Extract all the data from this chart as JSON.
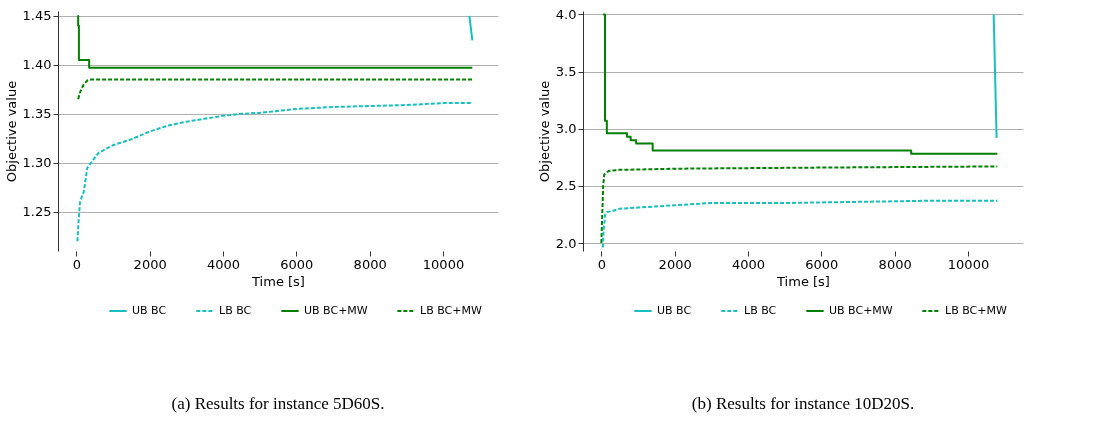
{
  "chart_data": [
    {
      "type": "line",
      "xlabel": "Time [s]",
      "ylabel": "Objective value",
      "annotations": [
        "(a) Results for instance 5D60S."
      ],
      "xlim": [
        -500,
        11500
      ],
      "ylim": [
        1.21,
        1.455
      ],
      "xticks": [
        0,
        2000,
        4000,
        6000,
        8000,
        10000
      ],
      "yticks": [
        1.25,
        {
          "value": 1.3,
          "label": "1.30"
        },
        1.35,
        {
          "value": 1.4,
          "label": "1.40"
        },
        1.45
      ],
      "grid": "y",
      "legend": "bottom",
      "series": [
        {
          "name": "UB BC",
          "color": "#17bfbf",
          "line_style": "solid",
          "x": [
            10720,
            10800
          ],
          "values": [
            1.45,
            1.425
          ]
        },
        {
          "name": "LB BC",
          "color": "#17bfbf",
          "line_style": "dashed",
          "x": [
            30,
            60,
            100,
            200,
            300,
            400,
            600,
            1000,
            1500,
            2000,
            2500,
            3000,
            3500,
            4000,
            4500,
            5000,
            5500,
            6000,
            7000,
            8000,
            9000,
            9500,
            10000,
            10800
          ],
          "values": [
            1.22,
            1.24,
            1.26,
            1.27,
            1.295,
            1.3,
            1.31,
            1.318,
            1.324,
            1.332,
            1.338,
            1.342,
            1.345,
            1.348,
            1.35,
            1.351,
            1.353,
            1.355,
            1.357,
            1.358,
            1.359,
            1.36,
            1.361,
            1.361
          ]
        },
        {
          "name": "UB BC+MW",
          "type": "step",
          "color": "#008000",
          "line_style": "solid",
          "x": [
            30,
            50,
            70,
            350,
            10800
          ],
          "values": [
            1.45,
            1.44,
            1.405,
            1.397,
            1.397
          ]
        },
        {
          "name": "LB BC+MW",
          "color": "#008000",
          "line_style": "dashed",
          "x": [
            50,
            100,
            200,
            300,
            400,
            10800
          ],
          "values": [
            1.365,
            1.372,
            1.38,
            1.384,
            1.385,
            1.385
          ]
        }
      ]
    },
    {
      "type": "line",
      "xlabel": "Time [s]",
      "ylabel": "Objective value",
      "annotations": [
        "(b) Results for instance 10D20S."
      ],
      "xlim": [
        -500,
        11500
      ],
      "ylim": [
        1.93,
        4.03
      ],
      "xticks": [
        0,
        2000,
        4000,
        6000,
        8000,
        10000
      ],
      "yticks": [
        {
          "value": 2,
          "label": "2.0"
        },
        2.5,
        {
          "value": 3,
          "label": "3.0"
        },
        3.5,
        {
          "value": 4,
          "label": "4.0"
        }
      ],
      "grid": "y",
      "legend": "bottom",
      "series": [
        {
          "name": "UB BC",
          "color": "#17bfbf",
          "line_style": "solid",
          "x": [
            10700,
            10780
          ],
          "values": [
            4.0,
            2.92
          ]
        },
        {
          "name": "LB BC",
          "color": "#17bfbf",
          "line_style": "dashed",
          "x": [
            40,
            60,
            90,
            100,
            150,
            300,
            500,
            1000,
            2000,
            3000,
            5000,
            7000,
            9000,
            10800
          ],
          "values": [
            1.96,
            2.1,
            2.2,
            2.25,
            2.27,
            2.28,
            2.3,
            2.31,
            2.33,
            2.35,
            2.35,
            2.36,
            2.37,
            2.37
          ]
        },
        {
          "name": "UB BC+MW",
          "type": "step",
          "color": "#008000",
          "line_style": "solid",
          "x": [
            50,
            100,
            150,
            700,
            800,
            950,
            1400,
            8450,
            10800
          ],
          "values": [
            4.0,
            3.07,
            2.96,
            2.93,
            2.9,
            2.87,
            2.81,
            2.78,
            2.78
          ]
        },
        {
          "name": "LB BC+MW",
          "color": "#008000",
          "line_style": "dashed",
          "x": [
            0,
            50,
            80,
            200,
            500,
            2000,
            6000,
            10800
          ],
          "values": [
            2.0,
            2.5,
            2.6,
            2.63,
            2.64,
            2.65,
            2.66,
            2.67
          ]
        }
      ]
    }
  ]
}
